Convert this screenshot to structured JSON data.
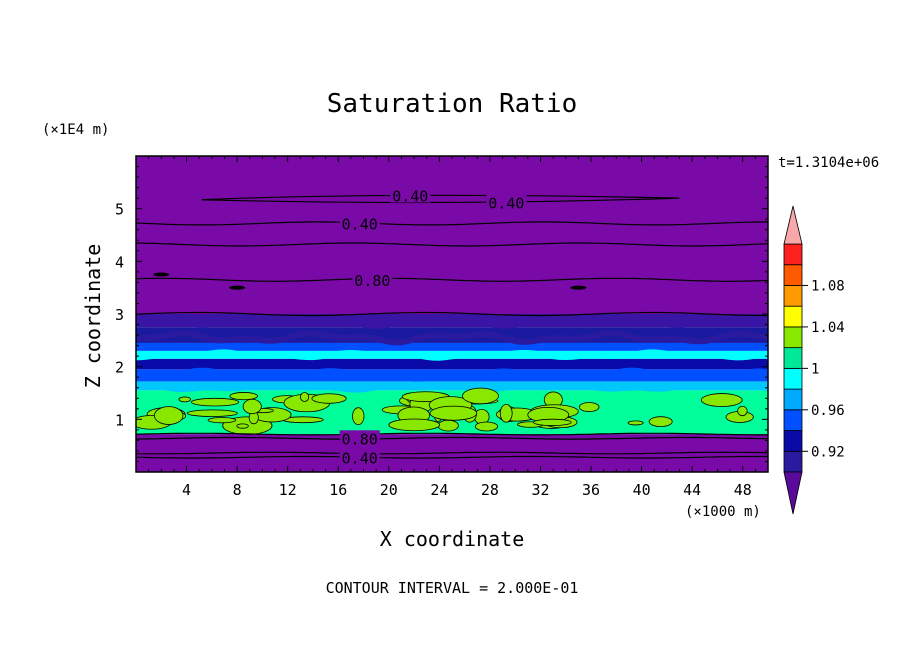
{
  "chart_data": {
    "type": "heatmap",
    "title": "Saturation Ratio",
    "xlabel": "X coordinate",
    "ylabel": "Z coordinate",
    "x_units": "(×1000 m)",
    "y_units": "(×1E4 m)",
    "time_label": "t=1.3104e+06",
    "footer": "CONTOUR INTERVAL = 2.000E-01",
    "xlim": [
      0,
      50
    ],
    "ylim": [
      0,
      6
    ],
    "x_ticks": [
      4,
      8,
      12,
      16,
      20,
      24,
      28,
      32,
      36,
      40,
      44,
      48
    ],
    "y_ticks": [
      1,
      2,
      3,
      4,
      5
    ],
    "colorbar": {
      "levels": [
        "0.92",
        "0.96",
        "1",
        "1.04",
        "1.08"
      ],
      "colors": [
        "#5a0a9a",
        "#2a1aa0",
        "#0a0aa8",
        "#0050ff",
        "#00aaff",
        "#00ffff",
        "#00e898",
        "#88e800",
        "#ffff00",
        "#ff9a00",
        "#ff5a00",
        "#ff2020",
        "#f8a8a8"
      ]
    },
    "bands": [
      {
        "z0": 0.0,
        "z1": 0.72,
        "color": "#7a0aa8"
      },
      {
        "z0": 0.72,
        "z1": 1.55,
        "color": "#00ff9a"
      },
      {
        "z0": 1.55,
        "z1": 1.72,
        "color": "#00c8ff"
      },
      {
        "z0": 1.72,
        "z1": 1.95,
        "color": "#0050ff"
      },
      {
        "z0": 1.95,
        "z1": 2.15,
        "color": "#0a0aa8"
      },
      {
        "z0": 2.15,
        "z1": 2.3,
        "color": "#00ffff"
      },
      {
        "z0": 2.3,
        "z1": 2.45,
        "color": "#0050ff"
      },
      {
        "z0": 2.45,
        "z1": 2.75,
        "color": "#1a1aa0"
      },
      {
        "z0": 2.75,
        "z1": 3.0,
        "color": "#3a14a4"
      },
      {
        "z0": 3.0,
        "z1": 6.0,
        "color": "#7a0aa8"
      }
    ],
    "contours": [
      {
        "label": "0.40",
        "z": 0.28
      },
      {
        "label": "0.80",
        "z": 0.64
      },
      {
        "label": "0.80",
        "z": 3.65
      },
      {
        "label": "0.40",
        "z": 4.72
      },
      {
        "label": "0.40",
        "z": 5.2
      },
      {
        "label": "0.40",
        "z": 5.2
      }
    ]
  }
}
